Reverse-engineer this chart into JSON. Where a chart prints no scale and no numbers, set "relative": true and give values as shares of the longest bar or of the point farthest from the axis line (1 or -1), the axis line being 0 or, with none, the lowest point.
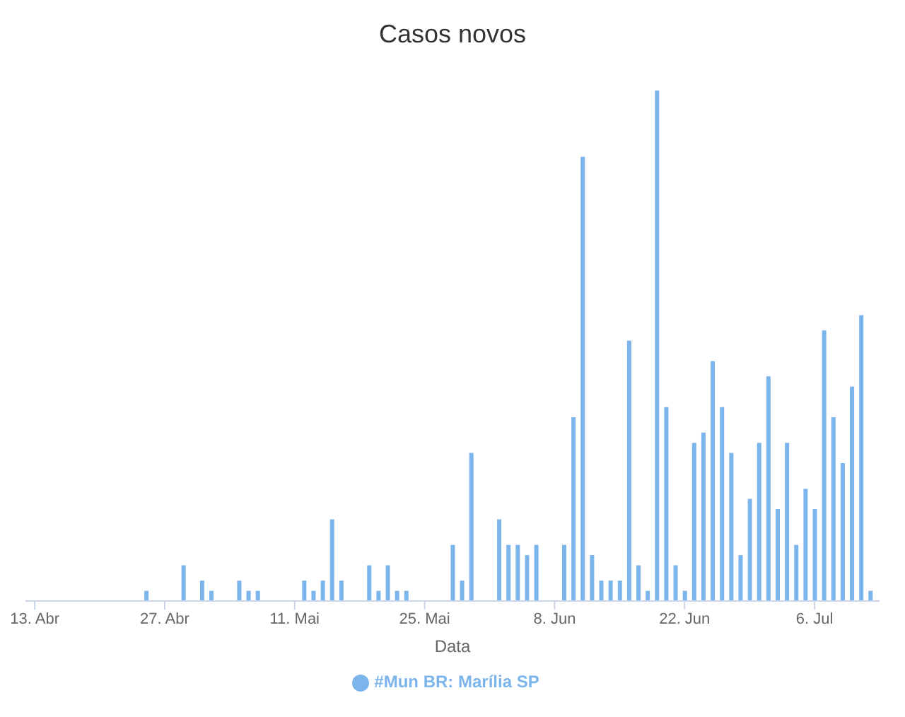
{
  "chart_data": {
    "type": "bar",
    "title": "Casos novos",
    "xlabel": "Data",
    "relative": true,
    "legend": "bottom",
    "x": [
      "--04-25",
      "--04-29",
      "--05-01",
      "--05-02",
      "--05-05",
      "--05-06",
      "--05-07",
      "--05-12",
      "--05-13",
      "--05-14",
      "--05-15",
      "--05-16",
      "--05-19",
      "--05-20",
      "--05-21",
      "--05-22",
      "--05-23",
      "--05-28",
      "--05-29",
      "--05-30",
      "--06-02",
      "--06-03",
      "--06-04",
      "--06-05",
      "--06-06",
      "--06-09",
      "--06-10",
      "--06-11",
      "--06-12",
      "--06-13",
      "--06-14",
      "--06-15",
      "--06-16",
      "--06-17",
      "--06-18",
      "--06-19",
      "--06-20",
      "--06-21",
      "--06-22",
      "--06-23",
      "--06-24",
      "--06-25",
      "--06-26",
      "--06-27",
      "--06-28",
      "--06-29",
      "--06-30",
      "--07-01",
      "--07-02",
      "--07-03",
      "--07-04",
      "--07-05",
      "--07-06",
      "--07-07",
      "--07-08",
      "--07-09",
      "--07-10",
      "--07-11",
      "--07-12"
    ],
    "series": [
      {
        "name": "#Mun BR: Marília SP",
        "color": "#7cb5ec",
        "values": [
          0.02,
          0.07,
          0.04,
          0.02,
          0.04,
          0.02,
          0.02,
          0.04,
          0.02,
          0.04,
          0.16,
          0.04,
          0.07,
          0.02,
          0.07,
          0.02,
          0.02,
          0.11,
          0.04,
          0.29,
          0.16,
          0.11,
          0.11,
          0.09,
          0.11,
          0.11,
          0.36,
          0.87,
          0.09,
          0.04,
          0.04,
          0.04,
          0.51,
          0.07,
          0.02,
          1,
          0.38,
          0.07,
          0.02,
          0.31,
          0.33,
          0.47,
          0.38,
          0.29,
          0.09,
          0.2,
          0.31,
          0.44,
          0.18,
          0.31,
          0.11,
          0.22,
          0.18,
          0.53,
          0.36,
          0.27,
          0.42,
          0.56,
          0.02
        ]
      }
    ],
    "xlim": [
      "--04-12",
      "--07-13"
    ],
    "xticks": [
      {
        "value": "--04-13",
        "label": "13. Abr"
      },
      {
        "value": "--04-27",
        "label": "27. Abr"
      },
      {
        "value": "--05-11",
        "label": "11. Mai"
      },
      {
        "value": "--05-25",
        "label": "25. Mai"
      },
      {
        "value": "--06-08",
        "label": "8. Jun"
      },
      {
        "value": "--06-22",
        "label": "22. Jun"
      },
      {
        "value": "--07-06",
        "label": "6. Jul"
      }
    ]
  }
}
